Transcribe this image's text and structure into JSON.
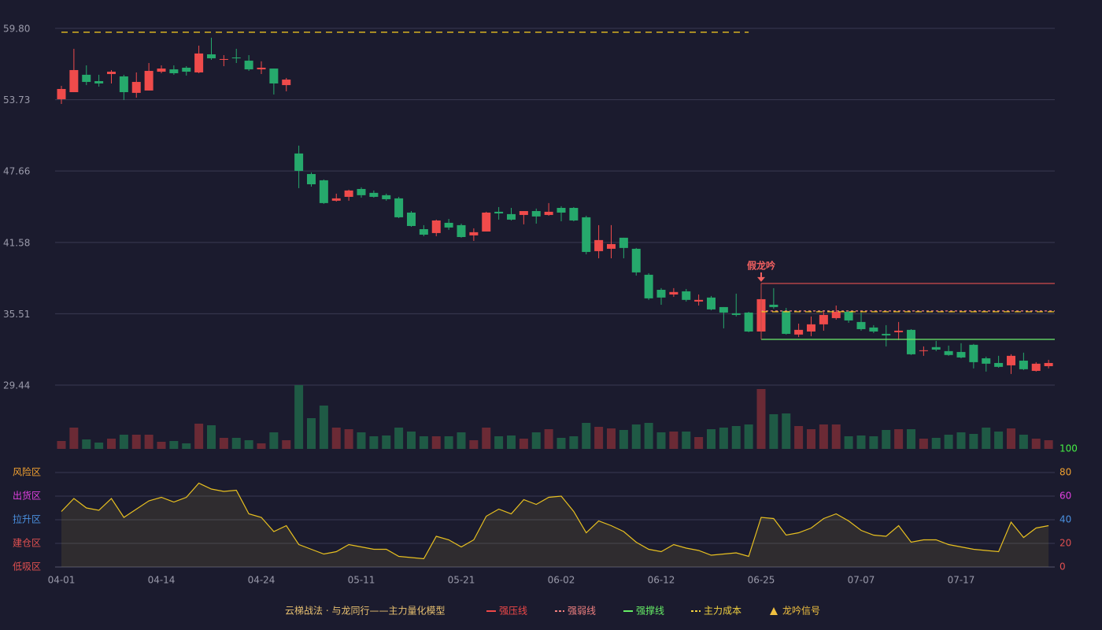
{
  "chart_data": [
    {
      "type": "candlestick",
      "categories": [
        "04-01",
        null,
        null,
        null,
        null,
        null,
        null,
        null,
        "04-14",
        null,
        null,
        null,
        null,
        null,
        null,
        null,
        "04-24",
        null,
        null,
        null,
        null,
        null,
        null,
        null,
        "05-11",
        null,
        null,
        null,
        null,
        null,
        null,
        null,
        "05-21",
        null,
        null,
        null,
        null,
        null,
        null,
        null,
        "06-02",
        null,
        null,
        null,
        null,
        null,
        null,
        null,
        "06-12",
        null,
        null,
        null,
        null,
        null,
        null,
        null,
        "06-25",
        null,
        null,
        null,
        null,
        null,
        null,
        null,
        "07-07",
        null,
        null,
        null,
        null,
        null,
        null,
        null,
        "07-17",
        null,
        null,
        null,
        null,
        null,
        null,
        null
      ],
      "open": [
        53.77,
        54.37,
        55.85,
        55.31,
        55.91,
        55.71,
        54.31,
        54.51,
        56.11,
        56.31,
        56.45,
        56.05,
        57.59,
        57.12,
        57.32,
        57.05,
        56.31,
        56.38,
        54.97,
        49.15,
        47.4,
        46.87,
        45.13,
        45.46,
        46.13,
        45.8,
        45.6,
        45.33,
        44.12,
        42.71,
        42.38,
        43.25,
        43.05,
        42.18,
        42.51,
        44.19,
        43.99,
        43.92,
        44.25,
        43.92,
        44.52,
        44.52,
        43.72,
        40.84,
        41.04,
        41.98,
        41.04,
        38.83,
        37.55,
        37.15,
        37.42,
        36.55,
        36.89,
        36.08,
        35.55,
        35.61,
        34.0,
        36.28,
        35.75,
        33.74,
        34.0,
        34.61,
        35.14,
        35.68,
        34.81,
        34.34,
        33.8,
        33.94,
        34.14,
        32.33,
        32.67,
        32.33,
        32.26,
        32.87,
        31.72,
        31.32,
        31.12,
        31.52,
        30.65,
        31.05
      ],
      "high": [
        54.91,
        58.06,
        56.65,
        55.85,
        56.25,
        55.85,
        56.05,
        56.85,
        56.65,
        56.65,
        56.58,
        58.33,
        59.0,
        57.52,
        58.06,
        57.52,
        56.99,
        56.38,
        55.58,
        49.82,
        47.54,
        46.94,
        45.73,
        46.07,
        46.27,
        46.0,
        45.73,
        45.46,
        44.25,
        43.05,
        43.52,
        43.58,
        43.18,
        42.78,
        44.19,
        44.59,
        44.52,
        44.25,
        44.46,
        44.93,
        44.66,
        44.59,
        43.85,
        43.05,
        43.05,
        41.98,
        41.11,
        38.96,
        37.69,
        37.69,
        37.62,
        37.15,
        37.02,
        36.08,
        37.22,
        35.68,
        38.09,
        37.69,
        36.01,
        34.67,
        35.28,
        35.81,
        36.21,
        35.75,
        35.61,
        34.54,
        34.54,
        34.81,
        34.2,
        32.73,
        33.2,
        32.8,
        33.0,
        32.94,
        31.86,
        31.93,
        32.06,
        32.2,
        31.39,
        31.59
      ],
      "low": [
        53.37,
        54.37,
        54.97,
        54.84,
        55.11,
        53.7,
        53.9,
        54.51,
        55.98,
        55.85,
        55.78,
        55.98,
        57.12,
        56.58,
        56.85,
        56.18,
        55.91,
        54.17,
        54.44,
        46.2,
        46.33,
        44.86,
        45.06,
        45.13,
        45.39,
        45.39,
        45.13,
        43.65,
        42.91,
        42.11,
        42.11,
        42.65,
        41.98,
        41.71,
        42.51,
        43.52,
        43.45,
        43.12,
        43.18,
        43.85,
        43.38,
        43.38,
        40.57,
        40.23,
        40.23,
        40.23,
        38.76,
        36.69,
        36.28,
        36.95,
        36.55,
        36.21,
        35.81,
        34.27,
        35.28,
        33.94,
        34.0,
        35.94,
        33.74,
        33.53,
        33.6,
        34.07,
        35.01,
        34.74,
        34.07,
        33.87,
        32.73,
        33.27,
        32.0,
        31.93,
        32.33,
        31.93,
        31.72,
        30.86,
        30.59,
        30.92,
        30.39,
        30.72,
        30.59,
        30.86
      ],
      "close": [
        54.64,
        56.25,
        55.24,
        55.11,
        56.11,
        54.37,
        55.24,
        56.18,
        56.38,
        55.98,
        56.11,
        57.66,
        57.25,
        57.19,
        57.25,
        56.31,
        56.45,
        55.11,
        55.44,
        47.67,
        46.53,
        44.93,
        45.33,
        46.0,
        45.6,
        45.46,
        45.26,
        43.72,
        42.98,
        42.24,
        43.45,
        42.85,
        42.04,
        42.45,
        44.12,
        44.05,
        43.52,
        44.25,
        43.79,
        44.19,
        44.12,
        43.45,
        40.77,
        41.78,
        41.44,
        41.11,
        39.03,
        36.82,
        36.89,
        37.36,
        36.69,
        36.69,
        35.88,
        35.61,
        35.41,
        34.0,
        36.75,
        36.08,
        33.8,
        34.14,
        34.61,
        35.41,
        35.68,
        34.94,
        34.2,
        34.0,
        33.67,
        34.07,
        32.06,
        32.4,
        32.46,
        32.0,
        31.79,
        31.39,
        31.26,
        30.99,
        31.93,
        30.79,
        31.26,
        31.32
      ],
      "up_color": "#ef4b4b",
      "down_color": "#26a96c",
      "ylim": [
        29.44,
        59.8
      ],
      "yticks": [
        {
          "value": 59.8,
          "label": "59.80"
        },
        53.73,
        47.66,
        41.58,
        35.51,
        29.44
      ],
      "grid": true,
      "levels": [
        {
          "name": "主力成本",
          "value": 59.47,
          "from": 0,
          "to": 55,
          "color": "#e8c020",
          "style": "dashed"
        },
        {
          "name": "强压线",
          "value": 38.09,
          "from": 56,
          "to": 79,
          "color": "#c04848",
          "style": "solid"
        },
        {
          "name": "强弱线",
          "value": 35.75,
          "from": 56,
          "to": 79,
          "color": "#f08080",
          "style": "dotted"
        },
        {
          "name": "主力成本",
          "value": 35.68,
          "from": 56,
          "to": 79,
          "color": "#e8c020",
          "style": "dashed"
        },
        {
          "name": "强撑线",
          "value": 33.33,
          "from": 56,
          "to": 79,
          "color": "#66dd66",
          "style": "solid"
        }
      ],
      "annotations": [
        {
          "text": "假龙吟",
          "index": 56,
          "color": "#f06060"
        }
      ]
    },
    {
      "type": "bar",
      "values": [
        10,
        27,
        12,
        8,
        13,
        18,
        18,
        18,
        9,
        10,
        7,
        32,
        30,
        14,
        14,
        11,
        7,
        21,
        11,
        81,
        39,
        55,
        27,
        25,
        21,
        16,
        17,
        27,
        22,
        16,
        16,
        16,
        21,
        11,
        27,
        16,
        17,
        13,
        21,
        25,
        14,
        16,
        33,
        28,
        26,
        24,
        31,
        33,
        21,
        22,
        22,
        15,
        25,
        27,
        29,
        31,
        76,
        44,
        45,
        29,
        25,
        31,
        31,
        16,
        17,
        16,
        24,
        25,
        25,
        13,
        14,
        18,
        21,
        19,
        27,
        22,
        26,
        18,
        13,
        11
      ],
      "up_color": "#6b2a35",
      "down_color": "#1f5a45"
    },
    {
      "type": "line",
      "values": [
        47,
        58,
        50,
        48,
        58,
        42,
        49,
        56,
        59,
        55,
        59,
        71,
        66,
        64,
        65,
        45,
        42,
        30,
        35,
        19,
        15,
        11,
        13,
        19,
        17,
        15,
        15,
        9,
        8,
        7,
        26,
        23,
        17,
        23,
        43,
        49,
        45,
        57,
        53,
        59,
        60,
        47,
        29,
        39,
        35,
        30,
        21,
        15,
        13,
        19,
        16,
        14,
        10,
        11,
        12,
        9,
        42,
        41,
        27,
        29,
        33,
        41,
        45,
        39,
        31,
        27,
        26,
        35,
        21,
        23,
        23,
        19,
        17,
        15,
        14,
        13,
        38,
        25,
        33,
        35
      ],
      "color": "#e8c020",
      "ylim": [
        0,
        100
      ],
      "yticks": [
        0,
        20,
        40,
        60,
        80,
        100
      ],
      "tick_colors": [
        "#e05050",
        "#e05050",
        "#4a90e0",
        "#e040e0",
        "#f0a030",
        "#44ee44"
      ],
      "zones": [
        {
          "label": "风险区",
          "value": 80,
          "color": "#f0a030"
        },
        {
          "label": "出货区",
          "value": 60,
          "color": "#e040e0"
        },
        {
          "label": "拉升区",
          "value": 40,
          "color": "#4a90e0"
        },
        {
          "label": "建仓区",
          "value": 20,
          "color": "#e05050"
        },
        {
          "label": "低吸区",
          "value": 0,
          "color": "#e05050"
        }
      ]
    }
  ],
  "legend": {
    "title": "云梯战法 · 与龙同行——主力量化模型",
    "title_color": "#e8c070",
    "items": [
      {
        "name": "强压线",
        "color": "#f04848",
        "style": "solid"
      },
      {
        "name": "强弱线",
        "color": "#f08080",
        "style": "dotted"
      },
      {
        "name": "强撑线",
        "color": "#66ee66",
        "style": "solid"
      },
      {
        "name": "主力成本",
        "color": "#f0d040",
        "style": "dotted"
      },
      {
        "name": "龙吟信号",
        "color": "#f0c040",
        "style": "triangle"
      }
    ]
  }
}
